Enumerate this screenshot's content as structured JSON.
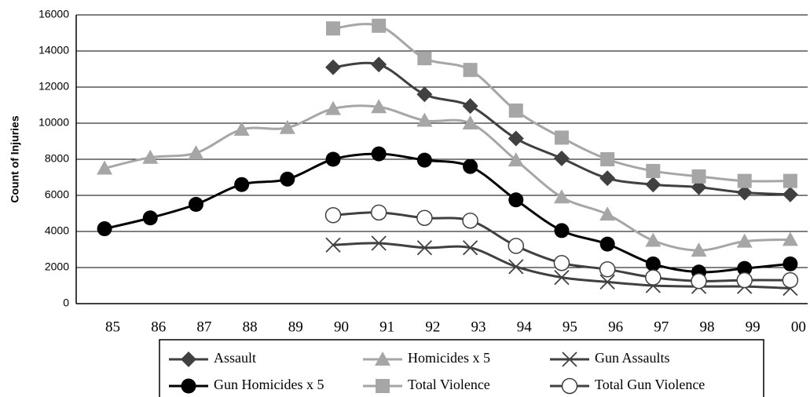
{
  "chart_data": {
    "type": "line",
    "y_label": "Count of Injuries",
    "categories": [
      "85",
      "86",
      "87",
      "88",
      "89",
      "90",
      "91",
      "92",
      "93",
      "94",
      "95",
      "96",
      "97",
      "98",
      "99",
      "00"
    ],
    "ylim": [
      0,
      16000
    ],
    "yticks": [
      0,
      2000,
      4000,
      6000,
      8000,
      10000,
      12000,
      14000,
      16000
    ],
    "grid": true,
    "legend": "bottom",
    "series": [
      {
        "name": "Assault",
        "color": "#404040",
        "marker": "diamond",
        "values": [
          null,
          null,
          null,
          null,
          null,
          13100,
          13250,
          11600,
          10950,
          9150,
          8050,
          6950,
          6600,
          6450,
          6150,
          6050
        ]
      },
      {
        "name": "Homicides x 5",
        "color": "#a6a6a6",
        "marker": "triangle",
        "values": [
          7500,
          8100,
          8350,
          9650,
          9750,
          10800,
          10900,
          10150,
          10000,
          7950,
          5900,
          4950,
          3500,
          2950,
          3450,
          3550
        ]
      },
      {
        "name": "Gun Assaults",
        "color": "#404040",
        "marker": "x",
        "values": [
          null,
          null,
          null,
          null,
          null,
          3250,
          3350,
          3100,
          3100,
          2050,
          1450,
          1200,
          1000,
          950,
          950,
          850
        ]
      },
      {
        "name": "Gun Homicides x 5",
        "color": "#000000",
        "marker": "circle",
        "values": [
          4150,
          4750,
          5500,
          6600,
          6900,
          8000,
          8300,
          7950,
          7600,
          5750,
          4050,
          3300,
          2200,
          1750,
          1950,
          2200
        ]
      },
      {
        "name": "Total Violence",
        "color": "#a6a6a6",
        "marker": "square",
        "values": [
          null,
          null,
          null,
          null,
          null,
          15250,
          15400,
          13600,
          12950,
          10700,
          9200,
          8000,
          7350,
          7050,
          6800,
          6800
        ]
      },
      {
        "name": "Total Gun Violence",
        "color": "#404040",
        "marker": "open-circle",
        "values": [
          null,
          null,
          null,
          null,
          null,
          4900,
          5050,
          4750,
          4600,
          3200,
          2250,
          1900,
          1450,
          1250,
          1300,
          1300
        ]
      }
    ]
  }
}
